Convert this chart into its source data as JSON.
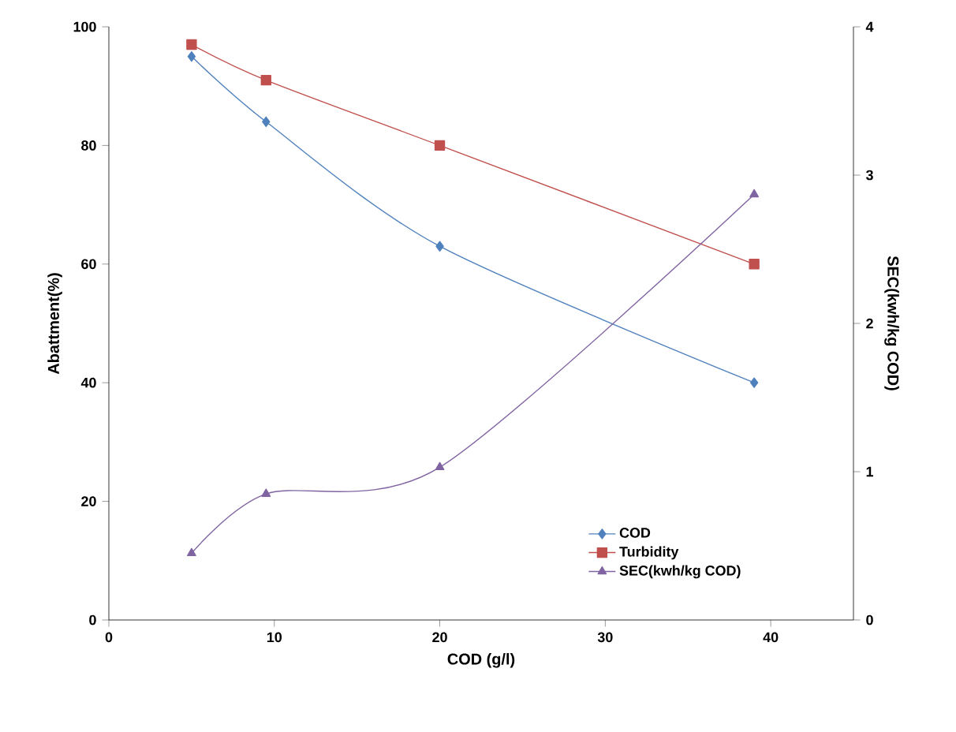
{
  "chart_data": {
    "type": "line",
    "xlabel": "COD    (g/l)",
    "ylabel": "Abattment(%)",
    "y2label": "SEC(kwh/kg COD)",
    "x": [
      5,
      9.5,
      20,
      39
    ],
    "series": [
      {
        "name": "COD",
        "color": "#4f81bd",
        "marker": "diamond",
        "values": [
          95,
          84,
          63,
          40
        ]
      },
      {
        "name": "Turbidity",
        "color": "#c0504d",
        "marker": "square",
        "values": [
          97,
          91,
          80,
          60
        ]
      },
      {
        "name": "SEC(kwh/kg COD)",
        "color": "#8064a2",
        "marker": "triangle",
        "axis": "y2",
        "values": [
          0.45,
          0.85,
          1.03,
          2.87
        ]
      }
    ],
    "xlim": [
      0,
      45
    ],
    "xticks": [
      0,
      10,
      20,
      30,
      40
    ],
    "ylim": [
      0,
      100
    ],
    "yticks": [
      0,
      20,
      40,
      60,
      80,
      100
    ],
    "y2lim": [
      0,
      4
    ],
    "y2ticks": [
      0,
      1,
      2,
      3,
      4
    ],
    "grid": false,
    "legend": "bottom right"
  }
}
